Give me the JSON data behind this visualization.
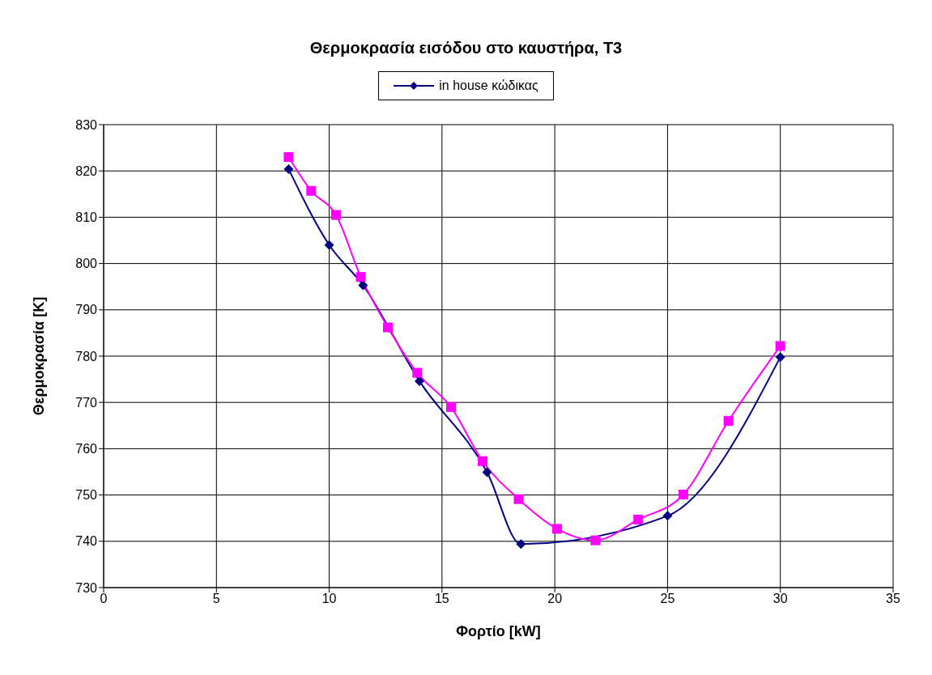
{
  "chart_data": {
    "type": "line",
    "title": "Θερμοκρασία εισόδου στο καυστήρα, Τ3",
    "xlabel": "Φορτίο [kW]",
    "ylabel": "Θερμοκρασία [K]",
    "xlim": [
      0,
      35
    ],
    "xticks": [
      0,
      5,
      10,
      15,
      20,
      25,
      30,
      35
    ],
    "ylim": [
      730,
      830
    ],
    "yticks": [
      730,
      740,
      750,
      760,
      770,
      780,
      790,
      800,
      810,
      820,
      830
    ],
    "grid": true,
    "legend": "top",
    "series": [
      {
        "name": "in house κώδικας",
        "color": "#000080",
        "marker": "diamond",
        "x": [
          8.2,
          10,
          11.5,
          12.6,
          14,
          17,
          18.5,
          25,
          30
        ],
        "values": [
          820.4,
          804,
          795.3,
          null,
          774.6,
          754.9,
          739.4,
          745.5,
          779.8
        ]
      },
      {
        "color": "#ff00ff",
        "marker": "square",
        "x": [
          8.2,
          9.2,
          10.3,
          11.4,
          12.6,
          13.9,
          15.4,
          16.8,
          18.4,
          20.1,
          21.8,
          23.7,
          25.7,
          27.7,
          30
        ],
        "values": [
          823,
          815.7,
          810.5,
          797.1,
          786.2,
          776.4,
          769,
          757.3,
          749.1,
          742.7,
          740.2,
          744.7,
          750.1,
          766,
          782.2
        ]
      }
    ]
  }
}
